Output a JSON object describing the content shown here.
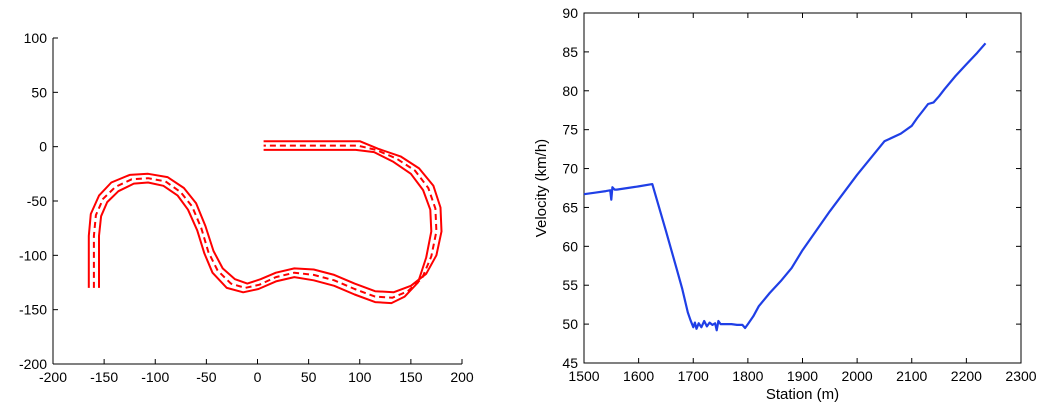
{
  "chart_data": [
    {
      "type": "line",
      "title": "",
      "xlabel": "",
      "ylabel": "",
      "xlim": [
        -200,
        200
      ],
      "ylim": [
        -200,
        100
      ],
      "xticks": [
        -200,
        -150,
        -100,
        -50,
        0,
        50,
        100,
        150,
        200
      ],
      "yticks": [
        100,
        50,
        0,
        -50,
        -100,
        -150,
        -200
      ],
      "colors": {
        "road": "#ff0000",
        "axis": "#000000"
      },
      "series": [
        {
          "style": "solid",
          "x": [
            -165,
            -165,
            -163,
            -155,
            -143,
            -125,
            -107,
            -88,
            -72,
            -60,
            -51,
            -43,
            -34,
            -22,
            -10,
            3,
            18,
            36,
            55,
            75,
            95,
            115,
            133,
            150,
            165,
            175,
            180,
            179,
            172,
            158,
            140,
            118,
            100,
            80,
            6
          ],
          "y": [
            -130,
            -82,
            -62,
            -45,
            -33,
            -26,
            -25,
            -28,
            -38,
            -52,
            -73,
            -96,
            -112,
            -122,
            -126,
            -122,
            -116,
            -112,
            -113,
            -118,
            -126,
            -133,
            -134,
            -128,
            -117,
            -100,
            -78,
            -56,
            -36,
            -20,
            -9,
            -2,
            5,
            5,
            5
          ]
        },
        {
          "style": "dashed",
          "x": [
            -160,
            -160,
            -158,
            -151,
            -139,
            -123,
            -107,
            -90,
            -75,
            -64,
            -55,
            -48,
            -39,
            -26,
            -12,
            2,
            18,
            36,
            55,
            75,
            95,
            115,
            132,
            147,
            161,
            170,
            175,
            174,
            167,
            154,
            136,
            116,
            98,
            80,
            6
          ],
          "y": [
            -130,
            -82,
            -63,
            -48,
            -37,
            -30,
            -29,
            -32,
            -42,
            -55,
            -75,
            -97,
            -114,
            -126,
            -130,
            -127,
            -120,
            -116,
            -118,
            -123,
            -131,
            -138,
            -139,
            -133,
            -121,
            -101,
            -78,
            -57,
            -38,
            -22,
            -11,
            -3,
            1,
            1,
            1
          ]
        },
        {
          "style": "solid",
          "x": [
            -155,
            -155,
            -153,
            -147,
            -136,
            -121,
            -107,
            -92,
            -78,
            -68,
            -59,
            -52,
            -44,
            -30,
            -14,
            1,
            18,
            36,
            55,
            75,
            95,
            115,
            131,
            144,
            157,
            165,
            170,
            169,
            162,
            150,
            133,
            114,
            96,
            80,
            6
          ],
          "y": [
            -130,
            -82,
            -64,
            -51,
            -41,
            -34,
            -33,
            -36,
            -45,
            -58,
            -77,
            -98,
            -116,
            -130,
            -134,
            -131,
            -124,
            -120,
            -123,
            -128,
            -136,
            -143,
            -144,
            -138,
            -125,
            -102,
            -78,
            -58,
            -40,
            -25,
            -14,
            -5,
            -3,
            -3,
            -3
          ]
        }
      ]
    },
    {
      "type": "line",
      "title": "",
      "xlabel": "Station (m)",
      "ylabel": "Velocity (km/h)",
      "xlim": [
        1500,
        2300
      ],
      "ylim": [
        45,
        90
      ],
      "xticks": [
        1500,
        1600,
        1700,
        1800,
        1900,
        2000,
        2100,
        2200,
        2300
      ],
      "yticks": [
        90,
        85,
        80,
        75,
        70,
        65,
        60,
        55,
        50,
        45
      ],
      "colors": {
        "line": "#1f3fe6",
        "axis": "#000000"
      },
      "series": [
        {
          "x": [
            1500,
            1520,
            1540,
            1548,
            1550,
            1552,
            1556,
            1560,
            1580,
            1600,
            1625,
            1650,
            1670,
            1680,
            1690,
            1695,
            1700,
            1703,
            1706,
            1710,
            1715,
            1720,
            1725,
            1730,
            1735,
            1740,
            1743,
            1746,
            1750,
            1760,
            1770,
            1780,
            1790,
            1795,
            1800,
            1810,
            1820,
            1840,
            1860,
            1880,
            1900,
            1950,
            2000,
            2050,
            2080,
            2100,
            2110,
            2120,
            2130,
            2140,
            2150,
            2160,
            2180,
            2200,
            2220,
            2235
          ],
          "y": [
            66.7,
            66.9,
            67.1,
            67.2,
            66.0,
            67.6,
            67.3,
            67.3,
            67.5,
            67.7,
            68.0,
            62.0,
            57.0,
            54.5,
            51.5,
            50.5,
            49.6,
            50.2,
            49.4,
            50.1,
            49.6,
            50.4,
            49.7,
            50.2,
            49.9,
            50.1,
            49.2,
            50.4,
            50.0,
            50.0,
            50.0,
            49.9,
            49.9,
            49.5,
            50.0,
            51.0,
            52.3,
            54.0,
            55.5,
            57.2,
            59.5,
            64.5,
            69.2,
            73.5,
            74.5,
            75.5,
            76.5,
            77.4,
            78.3,
            78.5,
            79.3,
            80.2,
            81.9,
            83.4,
            84.9,
            86.1
          ]
        }
      ]
    }
  ]
}
